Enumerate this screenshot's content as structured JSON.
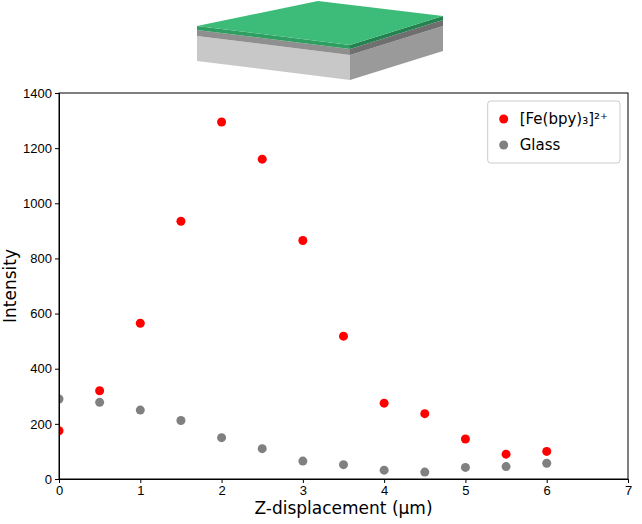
{
  "chart_data": {
    "type": "scatter",
    "x_label": "Z-displacement (μm)",
    "y_label": "Intensity",
    "x": [
      0,
      0.5,
      1,
      1.5,
      2,
      2.5,
      3,
      3.5,
      4,
      4.5,
      5,
      5.5,
      6
    ],
    "series": [
      {
        "name": "[Fe(bpy)₃]²⁺",
        "color": "#ff0000",
        "marker": "circle",
        "values": [
          175,
          320,
          565,
          935,
          1295,
          1160,
          865,
          518,
          275,
          237,
          145,
          90,
          100
        ]
      },
      {
        "name": "Glass",
        "color": "#808080",
        "marker": "circle",
        "values": [
          290,
          278,
          250,
          212,
          150,
          110,
          65,
          52,
          32,
          25,
          42,
          45,
          57
        ]
      }
    ],
    "xlim": [
      0,
      7
    ],
    "xticks": [
      0,
      1,
      2,
      3,
      4,
      5,
      6,
      7
    ],
    "ylim": [
      0,
      1400
    ],
    "yticks": [
      0,
      200,
      400,
      600,
      800,
      1000,
      1200,
      1400
    ],
    "legend": "upper right",
    "grid": false
  }
}
